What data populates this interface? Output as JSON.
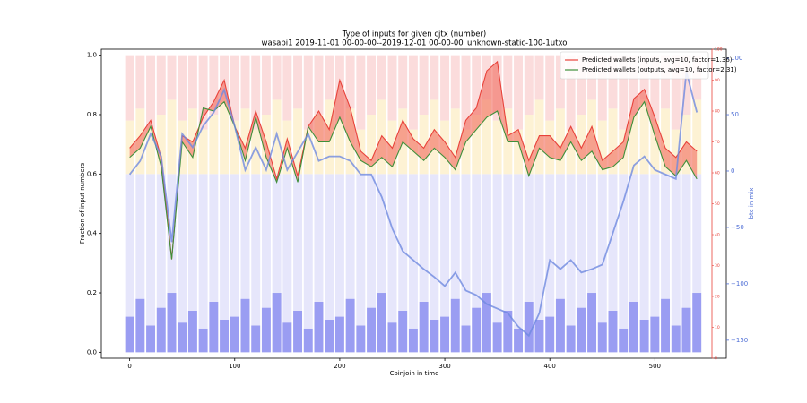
{
  "chart_data": {
    "type": "combo",
    "title": "Type of inputs for given cjtx (number)",
    "subtitle": "wasabi1 2019-11-01 00-00-00--2019-12-01 00-00-00_unknown-static-100-1utxo",
    "xlabel": "Coinjoin in time",
    "ylabel": "Fraction of input numbers",
    "y3label": "btc in mix",
    "x": [
      0,
      10,
      20,
      30,
      40,
      50,
      60,
      70,
      80,
      90,
      100,
      110,
      120,
      130,
      140,
      150,
      160,
      170,
      180,
      190,
      200,
      210,
      220,
      230,
      240,
      250,
      260,
      270,
      280,
      290,
      300,
      310,
      320,
      330,
      340,
      350,
      360,
      370,
      380,
      390,
      400,
      410,
      420,
      430,
      440,
      450,
      460,
      470,
      480,
      490,
      500,
      510,
      520,
      530,
      540
    ],
    "xlim": [
      -27,
      568
    ],
    "xticks": [
      0,
      100,
      200,
      300,
      400,
      500
    ],
    "ylim": [
      -0.02,
      1.02
    ],
    "yticks": [
      {
        "value": 0,
        "label": "0.0"
      },
      0.2,
      0.4,
      0.6,
      0.8,
      {
        "value": 1,
        "label": "1.0"
      }
    ],
    "y2lim": [
      0,
      100
    ],
    "y2ticks": [
      0,
      10,
      20,
      30,
      40,
      50,
      60,
      70,
      80,
      90,
      100
    ],
    "y2color": "#e8423a",
    "y3lim": [
      -166,
      108
    ],
    "y3ticks": [
      {
        "value": -150,
        "label": "−150"
      },
      {
        "value": -100,
        "label": "−100"
      },
      {
        "value": -50,
        "label": "−50"
      },
      0,
      50,
      100
    ],
    "y3color": "#4f6fd6",
    "stacked": true,
    "fill_between_color": "#f26b5e",
    "legend": "upper right",
    "series": [
      {
        "type": "bar",
        "color": "#9a9df2",
        "values": [
          0.12,
          0.18,
          0.09,
          0.15,
          0.2,
          0.1,
          0.14,
          0.08,
          0.17,
          0.11,
          0.12,
          0.18,
          0.09,
          0.15,
          0.2,
          0.1,
          0.14,
          0.08,
          0.17,
          0.11,
          0.12,
          0.18,
          0.09,
          0.15,
          0.2,
          0.1,
          0.14,
          0.08,
          0.17,
          0.11,
          0.12,
          0.18,
          0.09,
          0.15,
          0.2,
          0.1,
          0.14,
          0.08,
          0.17,
          0.11,
          0.12,
          0.18,
          0.09,
          0.15,
          0.2,
          0.1,
          0.14,
          0.08,
          0.17,
          0.11,
          0.12,
          0.18,
          0.09,
          0.15,
          0.2
        ]
      },
      {
        "type": "bar",
        "color": "#e6e6fb",
        "values": [
          0.48,
          0.42,
          0.51,
          0.45,
          0.4,
          0.5,
          0.46,
          0.52,
          0.43,
          0.49,
          0.48,
          0.42,
          0.51,
          0.45,
          0.4,
          0.5,
          0.46,
          0.52,
          0.43,
          0.49,
          0.48,
          0.42,
          0.51,
          0.45,
          0.4,
          0.5,
          0.46,
          0.52,
          0.43,
          0.49,
          0.48,
          0.42,
          0.51,
          0.45,
          0.4,
          0.5,
          0.46,
          0.52,
          0.43,
          0.49,
          0.48,
          0.42,
          0.51,
          0.45,
          0.4,
          0.5,
          0.46,
          0.52,
          0.43,
          0.49,
          0.48,
          0.42,
          0.51,
          0.45,
          0.4
        ]
      },
      {
        "type": "bar",
        "color": "#fdf2d4",
        "values": [
          0.18,
          0.22,
          0.15,
          0.2,
          0.25,
          0.18,
          0.22,
          0.15,
          0.2,
          0.25,
          0.18,
          0.22,
          0.15,
          0.2,
          0.25,
          0.18,
          0.22,
          0.15,
          0.2,
          0.25,
          0.18,
          0.22,
          0.15,
          0.2,
          0.25,
          0.18,
          0.22,
          0.15,
          0.2,
          0.25,
          0.18,
          0.22,
          0.15,
          0.2,
          0.25,
          0.18,
          0.22,
          0.15,
          0.2,
          0.25,
          0.18,
          0.22,
          0.15,
          0.2,
          0.25,
          0.18,
          0.22,
          0.15,
          0.2,
          0.25,
          0.18,
          0.22,
          0.15,
          0.2,
          0.25
        ]
      },
      {
        "type": "bar",
        "color": "#fbdcdc",
        "values": [
          0.22,
          0.18,
          0.25,
          0.2,
          0.15,
          0.22,
          0.18,
          0.25,
          0.2,
          0.15,
          0.22,
          0.18,
          0.25,
          0.2,
          0.15,
          0.22,
          0.18,
          0.25,
          0.2,
          0.15,
          0.22,
          0.18,
          0.25,
          0.2,
          0.15,
          0.22,
          0.18,
          0.25,
          0.2,
          0.15,
          0.22,
          0.18,
          0.25,
          0.2,
          0.15,
          0.22,
          0.18,
          0.25,
          0.2,
          0.15,
          0.22,
          0.18,
          0.25,
          0.2,
          0.15,
          0.22,
          0.18,
          0.25,
          0.2,
          0.15,
          0.22,
          0.18,
          0.25,
          0.2,
          0.15
        ]
      },
      {
        "type": "line",
        "axis": "y2",
        "name": "Predicted wallets (inputs, avg=10, factor=1.36)",
        "color": "#e8423a",
        "values": [
          68,
          72,
          77,
          65,
          32,
          72,
          70,
          78,
          83,
          90,
          75,
          68,
          80,
          70,
          58,
          71,
          59,
          75,
          80,
          74,
          90,
          81,
          67,
          64,
          72,
          68,
          77,
          71,
          68,
          74,
          70,
          65,
          77,
          81,
          93,
          96,
          72,
          74,
          64,
          72,
          72,
          68,
          75,
          68,
          75,
          64,
          67,
          70,
          84,
          87,
          78,
          68,
          65,
          70,
          67
        ]
      },
      {
        "type": "line",
        "axis": "y2",
        "name": "Predicted wallets (outputs, avg=10, factor=2.31)",
        "color": "#3f8f3a",
        "values": [
          65,
          68,
          75,
          62,
          32,
          70,
          65,
          81,
          80,
          83,
          75,
          64,
          78,
          65,
          57,
          68,
          57,
          75,
          70,
          70,
          78,
          70,
          64,
          62,
          65,
          62,
          70,
          67,
          64,
          68,
          65,
          61,
          70,
          74,
          78,
          80,
          70,
          70,
          59,
          68,
          65,
          64,
          70,
          64,
          67,
          61,
          62,
          65,
          78,
          83,
          72,
          62,
          59,
          64,
          58
        ]
      },
      {
        "type": "line",
        "axis": "y3",
        "color": "#6f8ae0",
        "values": [
          -3,
          9,
          33,
          13,
          -63,
          33,
          21,
          40,
          52,
          72,
          40,
          1,
          21,
          1,
          33,
          1,
          17,
          33,
          9,
          13,
          13,
          9,
          -3,
          -3,
          -23,
          -51,
          -71,
          -79,
          -87,
          -94,
          -102,
          -90,
          -106,
          -110,
          -118,
          -122,
          -126,
          -138,
          -146,
          -126,
          -79,
          -87,
          -79,
          -90,
          -87,
          -83,
          -55,
          -27,
          5,
          13,
          1,
          -3,
          -7,
          88,
          52
        ]
      }
    ]
  }
}
